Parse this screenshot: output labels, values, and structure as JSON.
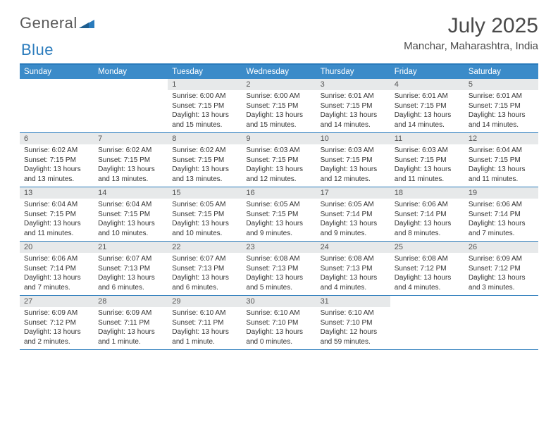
{
  "logo": {
    "text1": "General",
    "text2": "Blue",
    "mark_color": "#2a7bbc"
  },
  "title": "July 2025",
  "location": "Manchar, Maharashtra, India",
  "colors": {
    "header_bar": "#3b8bc9",
    "border": "#2a7bbc",
    "daynum_bg": "#e7e9ea",
    "text": "#333333",
    "dow_text": "#ffffff"
  },
  "days_of_week": [
    "Sunday",
    "Monday",
    "Tuesday",
    "Wednesday",
    "Thursday",
    "Friday",
    "Saturday"
  ],
  "weeks": [
    [
      null,
      null,
      {
        "n": "1",
        "sr": "6:00 AM",
        "ss": "7:15 PM",
        "dl": "13 hours and 15 minutes."
      },
      {
        "n": "2",
        "sr": "6:00 AM",
        "ss": "7:15 PM",
        "dl": "13 hours and 15 minutes."
      },
      {
        "n": "3",
        "sr": "6:01 AM",
        "ss": "7:15 PM",
        "dl": "13 hours and 14 minutes."
      },
      {
        "n": "4",
        "sr": "6:01 AM",
        "ss": "7:15 PM",
        "dl": "13 hours and 14 minutes."
      },
      {
        "n": "5",
        "sr": "6:01 AM",
        "ss": "7:15 PM",
        "dl": "13 hours and 14 minutes."
      }
    ],
    [
      {
        "n": "6",
        "sr": "6:02 AM",
        "ss": "7:15 PM",
        "dl": "13 hours and 13 minutes."
      },
      {
        "n": "7",
        "sr": "6:02 AM",
        "ss": "7:15 PM",
        "dl": "13 hours and 13 minutes."
      },
      {
        "n": "8",
        "sr": "6:02 AM",
        "ss": "7:15 PM",
        "dl": "13 hours and 13 minutes."
      },
      {
        "n": "9",
        "sr": "6:03 AM",
        "ss": "7:15 PM",
        "dl": "13 hours and 12 minutes."
      },
      {
        "n": "10",
        "sr": "6:03 AM",
        "ss": "7:15 PM",
        "dl": "13 hours and 12 minutes."
      },
      {
        "n": "11",
        "sr": "6:03 AM",
        "ss": "7:15 PM",
        "dl": "13 hours and 11 minutes."
      },
      {
        "n": "12",
        "sr": "6:04 AM",
        "ss": "7:15 PM",
        "dl": "13 hours and 11 minutes."
      }
    ],
    [
      {
        "n": "13",
        "sr": "6:04 AM",
        "ss": "7:15 PM",
        "dl": "13 hours and 11 minutes."
      },
      {
        "n": "14",
        "sr": "6:04 AM",
        "ss": "7:15 PM",
        "dl": "13 hours and 10 minutes."
      },
      {
        "n": "15",
        "sr": "6:05 AM",
        "ss": "7:15 PM",
        "dl": "13 hours and 10 minutes."
      },
      {
        "n": "16",
        "sr": "6:05 AM",
        "ss": "7:15 PM",
        "dl": "13 hours and 9 minutes."
      },
      {
        "n": "17",
        "sr": "6:05 AM",
        "ss": "7:14 PM",
        "dl": "13 hours and 9 minutes."
      },
      {
        "n": "18",
        "sr": "6:06 AM",
        "ss": "7:14 PM",
        "dl": "13 hours and 8 minutes."
      },
      {
        "n": "19",
        "sr": "6:06 AM",
        "ss": "7:14 PM",
        "dl": "13 hours and 7 minutes."
      }
    ],
    [
      {
        "n": "20",
        "sr": "6:06 AM",
        "ss": "7:14 PM",
        "dl": "13 hours and 7 minutes."
      },
      {
        "n": "21",
        "sr": "6:07 AM",
        "ss": "7:13 PM",
        "dl": "13 hours and 6 minutes."
      },
      {
        "n": "22",
        "sr": "6:07 AM",
        "ss": "7:13 PM",
        "dl": "13 hours and 6 minutes."
      },
      {
        "n": "23",
        "sr": "6:08 AM",
        "ss": "7:13 PM",
        "dl": "13 hours and 5 minutes."
      },
      {
        "n": "24",
        "sr": "6:08 AM",
        "ss": "7:13 PM",
        "dl": "13 hours and 4 minutes."
      },
      {
        "n": "25",
        "sr": "6:08 AM",
        "ss": "7:12 PM",
        "dl": "13 hours and 4 minutes."
      },
      {
        "n": "26",
        "sr": "6:09 AM",
        "ss": "7:12 PM",
        "dl": "13 hours and 3 minutes."
      }
    ],
    [
      {
        "n": "27",
        "sr": "6:09 AM",
        "ss": "7:12 PM",
        "dl": "13 hours and 2 minutes."
      },
      {
        "n": "28",
        "sr": "6:09 AM",
        "ss": "7:11 PM",
        "dl": "13 hours and 1 minute."
      },
      {
        "n": "29",
        "sr": "6:10 AM",
        "ss": "7:11 PM",
        "dl": "13 hours and 1 minute."
      },
      {
        "n": "30",
        "sr": "6:10 AM",
        "ss": "7:10 PM",
        "dl": "13 hours and 0 minutes."
      },
      {
        "n": "31",
        "sr": "6:10 AM",
        "ss": "7:10 PM",
        "dl": "12 hours and 59 minutes."
      },
      null,
      null
    ]
  ],
  "labels": {
    "sunrise": "Sunrise: ",
    "sunset": "Sunset: ",
    "daylight": "Daylight: "
  }
}
